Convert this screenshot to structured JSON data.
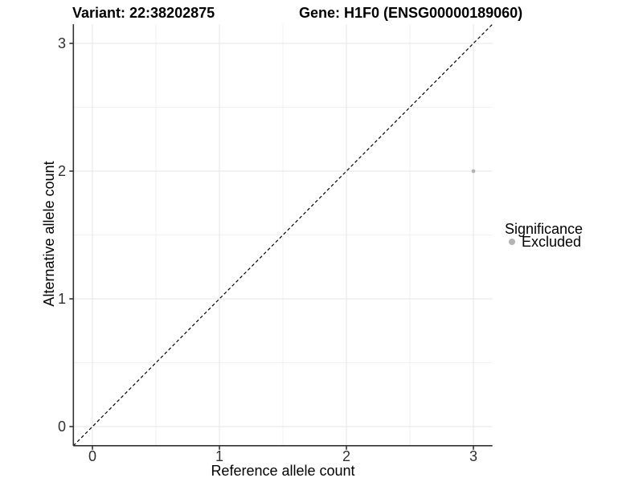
{
  "chart_data": {
    "type": "scatter",
    "titles": {
      "left": "Variant: 22:38202875",
      "right": "Gene: H1F0 (ENSG00000189060)"
    },
    "xlabel": "Reference allele count",
    "ylabel": "Alternative allele count",
    "xlim": [
      -0.15,
      3.15
    ],
    "ylim": [
      -0.15,
      3.15
    ],
    "x_ticks": [
      0,
      1,
      2,
      3
    ],
    "y_ticks": [
      0,
      1,
      2,
      3
    ],
    "x_tick_labels": [
      "0",
      "1",
      "2",
      "3"
    ],
    "y_tick_labels": [
      "0",
      "1",
      "2",
      "3"
    ],
    "grid": "major+minor",
    "points": [
      {
        "x": 3,
        "y": 2,
        "significance": "Excluded"
      }
    ],
    "identity_line": {
      "style": "dashed",
      "slope": 1,
      "intercept": 0,
      "color": "#000000"
    },
    "legend": {
      "position": "right",
      "title": "Significance",
      "items": [
        {
          "label": "Excluded",
          "color": "#b4b4b4"
        }
      ]
    },
    "colors": {
      "background": "#ffffff",
      "grid_major": "#e5e5e5",
      "grid_minor": "#f2f2f2",
      "axis": "#333333",
      "tick_text": "#303030"
    }
  }
}
